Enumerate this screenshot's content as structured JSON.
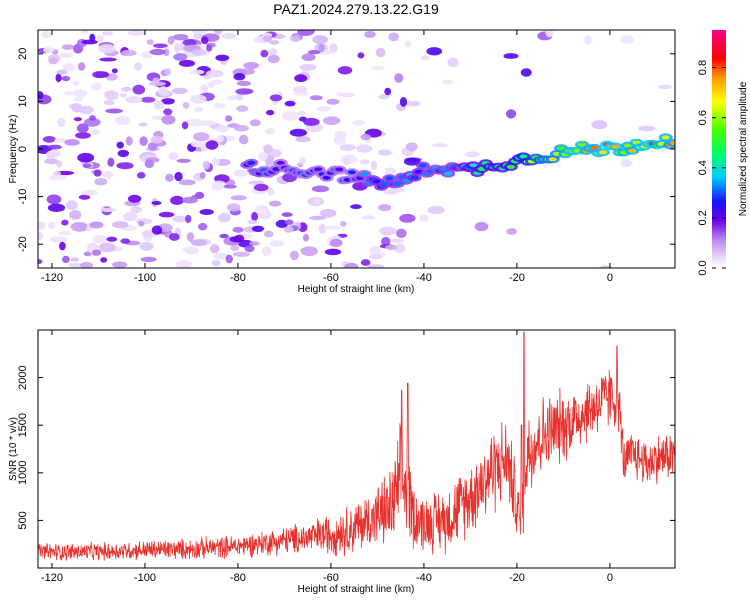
{
  "title": "PAZ1.2024.279.13.22.G19",
  "colors": {
    "snr_line": "#e8302c",
    "spectrogram_low": "#b884f0",
    "spectrogram_high": "#ff0000",
    "frame": "#000000",
    "background": "#ffffff"
  },
  "chart_data": [
    {
      "type": "heatmap",
      "title": "",
      "xlabel": "Height of straight line (km)",
      "ylabel": "Frequency (Hz)",
      "xlim": [
        -123,
        14
      ],
      "ylim": [
        -25,
        25
      ],
      "xticks": [
        -120,
        -100,
        -80,
        -60,
        -40,
        -20,
        0
      ],
      "yticks": [
        -20,
        -10,
        0,
        10,
        20
      ],
      "colorbar": {
        "label": "Normalized spectral amplitude",
        "range": [
          0.0,
          0.95
        ],
        "ticks": [
          0.0,
          0.2,
          0.4,
          0.6,
          0.8
        ],
        "tick_labels": [
          "0.0",
          "0.2",
          "0.4",
          "0.6",
          "0.8"
        ],
        "colormap": "hsv-rainbow (white -> purple -> blue -> cyan -> green -> yellow -> red -> magenta)"
      },
      "ridge": {
        "description": "dominant frequency track",
        "x": [
          -78,
          -70,
          -60,
          -55,
          -50,
          -45,
          -42,
          -38,
          -32,
          -28,
          -24,
          -20,
          -16,
          -12,
          -8,
          -4,
          0,
          4,
          8,
          12,
          14
        ],
        "y": [
          -4,
          -4,
          -5,
          -6,
          -7,
          -7,
          -5.5,
          -3.5,
          -4.5,
          -4,
          -3,
          -2.5,
          -1.5,
          -1,
          -0.5,
          0,
          0,
          0.5,
          1.5,
          2,
          2
        ],
        "amplitude": [
          0.35,
          0.3,
          0.3,
          0.3,
          0.4,
          0.35,
          0.4,
          0.35,
          0.4,
          0.5,
          0.5,
          0.55,
          0.7,
          0.75,
          0.85,
          0.8,
          0.85,
          0.8,
          0.85,
          0.8,
          0.8
        ]
      }
    },
    {
      "type": "line",
      "title": "",
      "xlabel": "Height of straight line (km)",
      "ylabel": "SNR (10 * v/v)",
      "xlim": [
        -123,
        14
      ],
      "ylim": [
        0,
        2500
      ],
      "xticks": [
        -120,
        -100,
        -80,
        -60,
        -40,
        -20,
        0
      ],
      "yticks": [
        500,
        1000,
        1500,
        2000
      ],
      "series": [
        {
          "envelope_x": [
            -123,
            -110,
            -100,
            -90,
            -80,
            -70,
            -65,
            -60,
            -55,
            -50,
            -47,
            -45,
            -44,
            -42,
            -40,
            -35,
            -30,
            -25,
            -22,
            -20,
            -19,
            -18,
            -15,
            -10,
            -5,
            0,
            2,
            3,
            5,
            8,
            10,
            14
          ],
          "envelope_mean": [
            170,
            170,
            190,
            200,
            230,
            290,
            320,
            360,
            420,
            550,
            620,
            900,
            850,
            540,
            470,
            520,
            750,
            1050,
            1150,
            650,
            400,
            1200,
            1380,
            1500,
            1650,
            1800,
            1700,
            1100,
            1200,
            1100,
            1150,
            1200
          ],
          "envelope_spread": [
            110,
            110,
            120,
            130,
            140,
            170,
            200,
            260,
            320,
            380,
            500,
            700,
            600,
            400,
            350,
            400,
            450,
            550,
            500,
            450,
            300,
            600,
            500,
            450,
            400,
            400,
            350,
            300,
            300,
            300,
            300,
            300
          ],
          "peaks_x": [
            -44.8,
            -43.5,
            -19,
            -18.5,
            1.5
          ],
          "peaks_y": [
            1870,
            1940,
            1500,
            2480,
            2330
          ]
        }
      ]
    }
  ]
}
